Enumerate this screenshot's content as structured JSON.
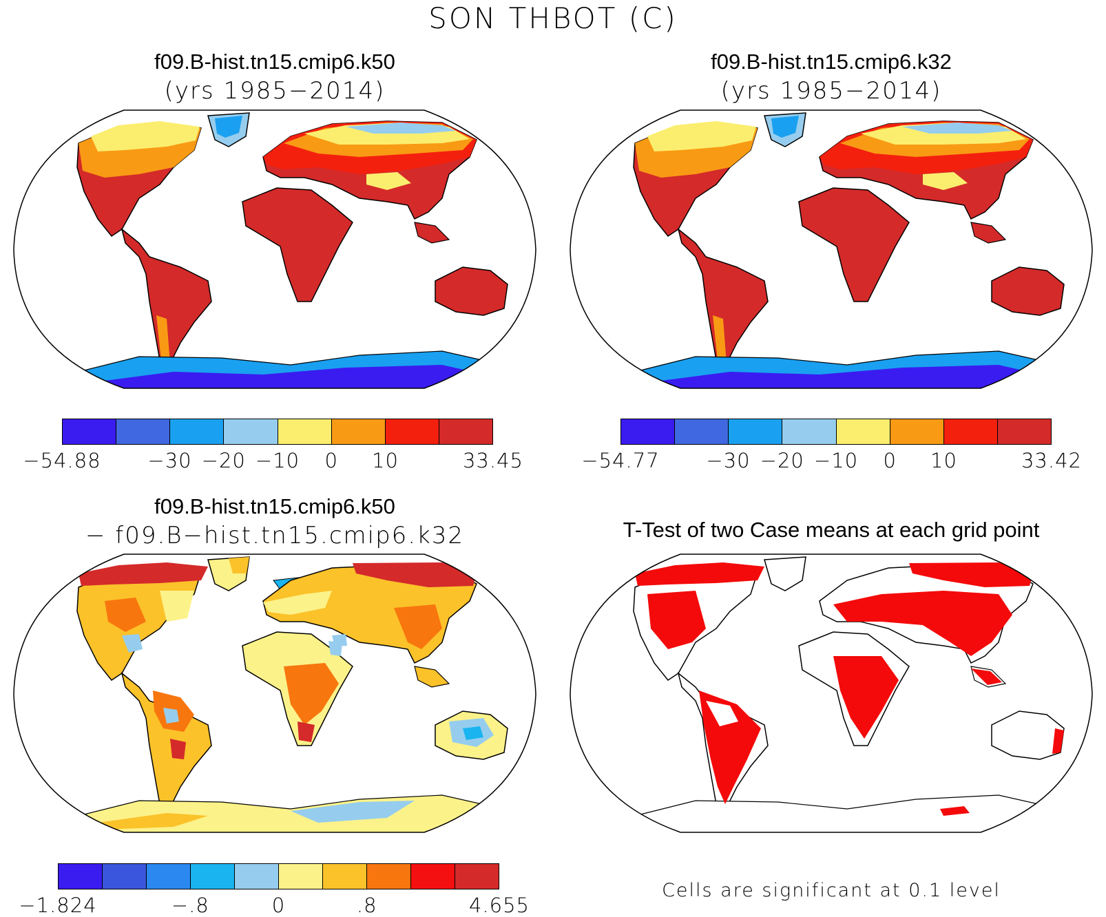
{
  "page_title": "SON THBOT (C)",
  "panels": {
    "top_left": {
      "title": "f09.B-hist.tn15.cmip6.k50",
      "subtitle": "(yrs 1985−2014)",
      "colorbar": {
        "colors": [
          "#3a1cf0",
          "#4068e0",
          "#1aa0f0",
          "#96cdee",
          "#fbee6e",
          "#f99a14",
          "#f4200e",
          "#d42a2a"
        ],
        "labels": [
          "−54.88",
          "−30",
          "−20",
          "−10",
          "0",
          "10",
          "33.45"
        ]
      }
    },
    "top_right": {
      "title": "f09.B-hist.tn15.cmip6.k32",
      "subtitle": "(yrs 1985−2014)",
      "colorbar": {
        "colors": [
          "#3a1cf0",
          "#4068e0",
          "#1aa0f0",
          "#96cdee",
          "#fbee6e",
          "#f99a14",
          "#f4200e",
          "#d42a2a"
        ],
        "labels": [
          "−54.77",
          "−30",
          "−20",
          "−10",
          "0",
          "10",
          "33.42"
        ]
      }
    },
    "bottom_left": {
      "title": "f09.B-hist.tn15.cmip6.k50",
      "subtitle": "− f09.B−hist.tn15.cmip6.k32",
      "colorbar": {
        "colors": [
          "#3a1cf0",
          "#3a56dc",
          "#2a88f0",
          "#1ab4f0",
          "#96cdee",
          "#fcf28a",
          "#fbc22a",
          "#f8760e",
          "#f41010",
          "#d42a2a"
        ],
        "labels": [
          "−1.824",
          "−.8",
          "0",
          ".8",
          "4.655"
        ]
      }
    },
    "bottom_right": {
      "title": "T-Test of two Case means at each grid point",
      "note": "Cells are significant at 0.1 level"
    }
  },
  "colors": {
    "warm": "#d42a2a",
    "red": "#f4200e",
    "orange": "#f99a14",
    "yellow": "#fbee6e",
    "lightblue": "#96cdee",
    "blue": "#1aa0f0",
    "deepblue": "#3a1cf0",
    "signif": "#f40a0a"
  }
}
